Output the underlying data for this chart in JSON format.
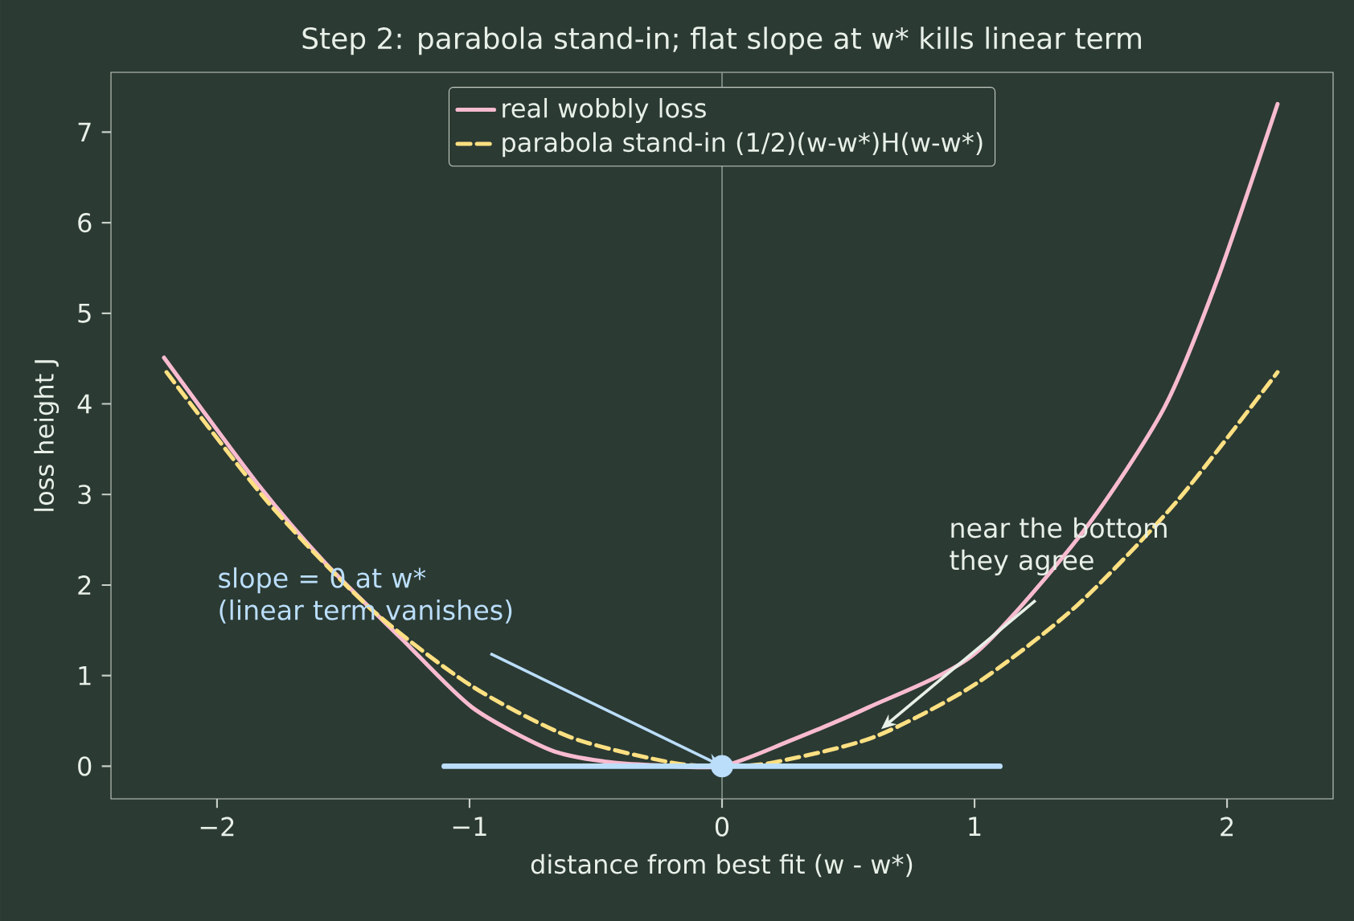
{
  "chart_data": {
    "type": "line",
    "title": "Step 2: parabola stand-in; flat slope at w* kills linear term",
    "xlabel": "distance from best fit  (w - w*)",
    "ylabel": "loss height  J",
    "xlim": [
      -2.42,
      2.42
    ],
    "ylim": [
      -0.36,
      7.66
    ],
    "xticks": [
      {
        "value": -2,
        "label": "−2"
      },
      {
        "value": -1,
        "label": "−1"
      },
      0,
      1,
      2
    ],
    "yticks": [
      0,
      1,
      2,
      3,
      4,
      5,
      6,
      7
    ],
    "legend": "top",
    "series": [
      {
        "name": "real wobbly loss",
        "color": "#f8bbd0",
        "x": [
          -2.21,
          -1.84,
          -1.57,
          -1.27,
          -0.99,
          -0.68,
          -0.46,
          -0.25,
          0,
          0.26,
          0.58,
          1.0,
          1.43,
          1.75,
          1.96,
          2.2
        ],
        "values": [
          4.51,
          3.12,
          2.24,
          1.41,
          0.65,
          0.18,
          0.05,
          0.01,
          0,
          0.27,
          0.65,
          1.24,
          2.59,
          3.95,
          5.36,
          7.31
        ]
      },
      {
        "name": "parabola stand-in (1/2)(w-w*)H(w-w*)",
        "color": "#ffe082",
        "line_style": "dashed",
        "x": [
          -2.2,
          -1.8,
          -1.4,
          -1.0,
          -0.6,
          -0.2,
          0,
          0.2,
          0.6,
          1.0,
          1.4,
          1.8,
          2.2
        ],
        "values": [
          4.35,
          2.92,
          1.76,
          0.9,
          0.32,
          0.04,
          0,
          0.04,
          0.32,
          0.9,
          1.76,
          2.92,
          4.35
        ]
      },
      {
        "color": "#bbdefb",
        "x": [
          -1.1,
          1.1
        ],
        "values": [
          0,
          0
        ]
      },
      {
        "type": "scatter",
        "color": "#bbdefb",
        "marker": "circle",
        "x": [
          0
        ],
        "values": [
          0
        ]
      }
    ],
    "ref_lines": [
      {
        "axis": "x",
        "value": 0,
        "color": "#8a9a90"
      }
    ],
    "annotations": [
      {
        "text": "slope = 0 at w* (linear term vanishes)",
        "x": 0,
        "y": 0
      },
      {
        "text": "near the bottom they agree",
        "x": 0.63,
        "y": 0.41
      }
    ]
  }
}
